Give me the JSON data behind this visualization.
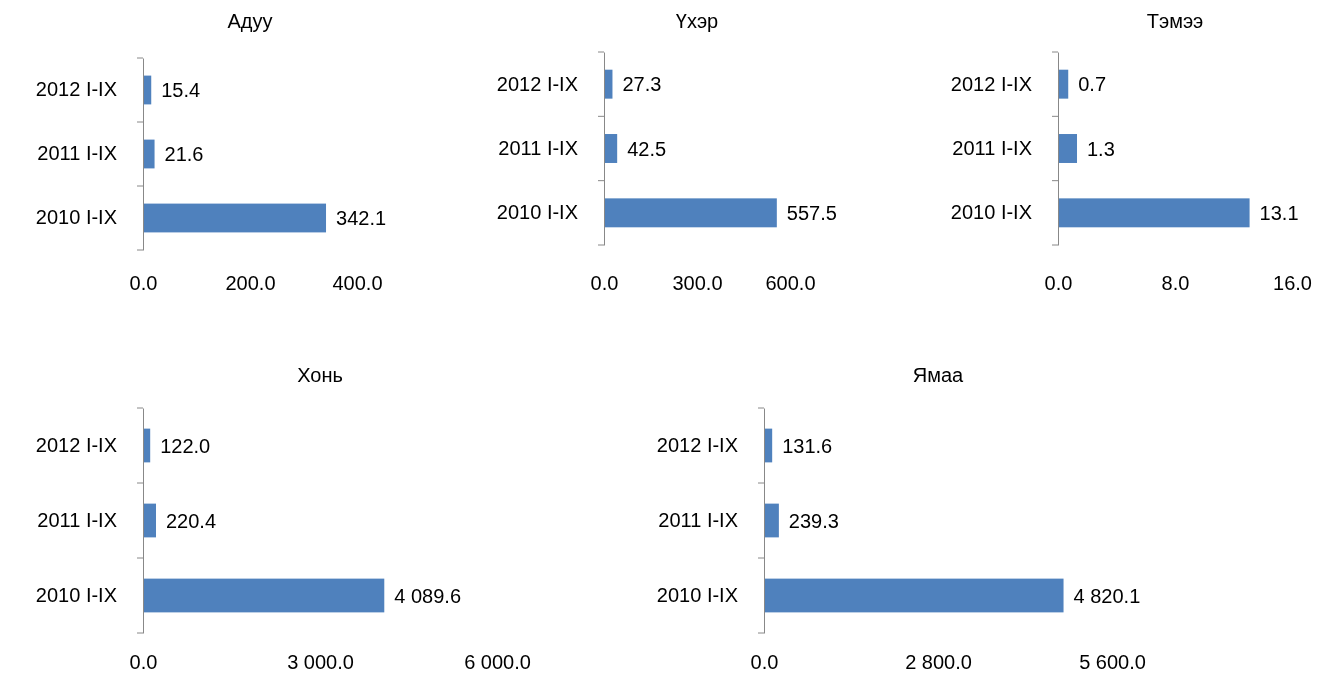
{
  "chart_data": [
    {
      "type": "bar",
      "orientation": "horizontal",
      "title": "Адуу",
      "categories": [
        "2012 I-IX",
        "2011 I-IX",
        "2010 I-IX"
      ],
      "values": [
        15.4,
        21.6,
        342.1
      ],
      "color": "#4f81bd",
      "xlim": [
        0,
        400
      ],
      "xticks": [
        {
          "value": 0,
          "label": "0.0"
        },
        {
          "value": 200,
          "label": "200.0"
        },
        {
          "value": 400,
          "label": "400.0"
        }
      ],
      "data_labels": true
    },
    {
      "type": "bar",
      "orientation": "horizontal",
      "title": "Үхэр",
      "categories": [
        "2012 I-IX",
        "2011 I-IX",
        "2010 I-IX"
      ],
      "values": [
        27.3,
        42.5,
        557.5
      ],
      "color": "#4f81bd",
      "xlim": [
        0,
        600
      ],
      "xticks": [
        {
          "value": 0,
          "label": "0.0"
        },
        {
          "value": 300,
          "label": "300.0"
        },
        {
          "value": 600,
          "label": "600.0"
        }
      ],
      "data_labels": true
    },
    {
      "type": "bar",
      "orientation": "horizontal",
      "title": "Тэмээ",
      "categories": [
        "2012 I-IX",
        "2011 I-IX",
        "2010 I-IX"
      ],
      "values": [
        0.7,
        1.3,
        13.1
      ],
      "color": "#4f81bd",
      "xlim": [
        0,
        16
      ],
      "xticks": [
        {
          "value": 0,
          "label": "0.0"
        },
        {
          "value": 8,
          "label": "8.0"
        },
        {
          "value": 16,
          "label": "16.0"
        }
      ],
      "data_labels": true
    },
    {
      "type": "bar",
      "orientation": "horizontal",
      "title": "Хонь",
      "categories": [
        "2012 I-IX",
        "2011 I-IX",
        "2010 I-IX"
      ],
      "values": [
        122.0,
        220.4,
        4089.6
      ],
      "value_labels": [
        "122.0",
        "220.4",
        "4 089.6"
      ],
      "color": "#4f81bd",
      "xlim": [
        0,
        6000
      ],
      "xticks": [
        {
          "value": 0,
          "label": "0.0"
        },
        {
          "value": 3000,
          "label": "3 000.0"
        },
        {
          "value": 6000,
          "label": "6 000.0"
        }
      ]
    },
    {
      "type": "bar",
      "orientation": "horizontal",
      "title": "Ямаа",
      "categories": [
        "2012 I-IX",
        "2011 I-IX",
        "2010 I-IX"
      ],
      "values": [
        131.6,
        239.3,
        4820.1
      ],
      "value_labels": [
        "131.6",
        "239.3",
        "4 820.1"
      ],
      "color": "#4f81bd",
      "xlim": [
        0,
        5600
      ],
      "xticks": [
        {
          "value": 0,
          "label": "0.0"
        },
        {
          "value": 2800,
          "label": "2 800.0"
        },
        {
          "value": 5600,
          "label": "5 600.0"
        }
      ]
    }
  ]
}
